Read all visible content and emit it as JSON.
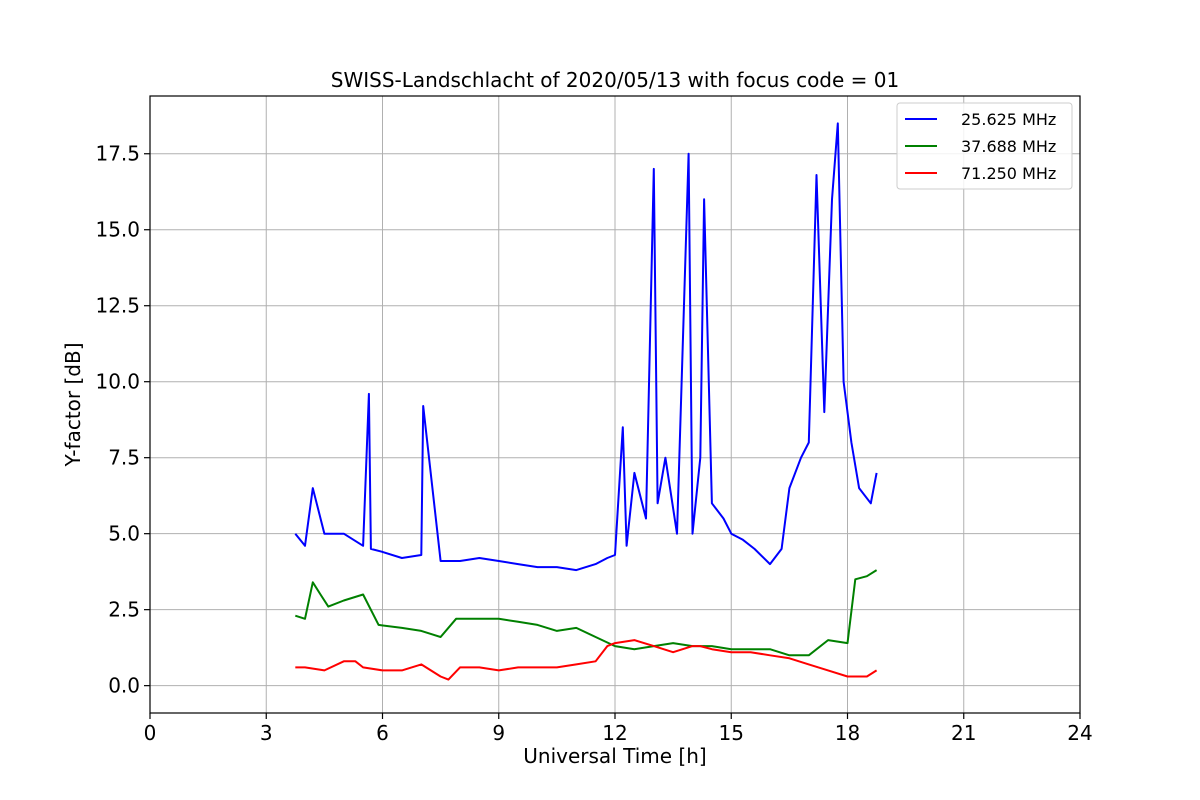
{
  "chart_data": {
    "type": "line",
    "title": "SWISS-Landschlacht of 2020/05/13 with focus code = 01",
    "xlabel": "Universal Time [h]",
    "ylabel": "Y-factor [dB]",
    "xlim": [
      0,
      24
    ],
    "ylim": [
      -0.9,
      19.4
    ],
    "xticks": [
      0,
      3,
      6,
      9,
      12,
      15,
      18,
      21,
      24
    ],
    "yticks": [
      0.0,
      2.5,
      5.0,
      7.5,
      10.0,
      12.5,
      15.0,
      17.5
    ],
    "xtick_labels": [
      "0",
      "3",
      "6",
      "9",
      "12",
      "15",
      "18",
      "21",
      "24"
    ],
    "ytick_labels": [
      "0.0",
      "2.5",
      "5.0",
      "7.5",
      "10.0",
      "12.5",
      "15.0",
      "17.5"
    ],
    "grid": true,
    "legend_position": "top-right",
    "series": [
      {
        "name": "25.625 MHz",
        "color": "#0000ff",
        "x": [
          3.75,
          4.0,
          4.2,
          4.5,
          5.0,
          5.5,
          5.65,
          5.7,
          6.0,
          6.5,
          7.0,
          7.05,
          7.5,
          8.0,
          8.5,
          9.0,
          9.5,
          10.0,
          10.5,
          11.0,
          11.5,
          11.8,
          12.0,
          12.2,
          12.3,
          12.5,
          12.8,
          13.0,
          13.1,
          13.3,
          13.6,
          13.9,
          14.0,
          14.2,
          14.3,
          14.5,
          14.8,
          15.0,
          15.3,
          15.6,
          16.0,
          16.3,
          16.5,
          16.8,
          17.0,
          17.2,
          17.4,
          17.6,
          17.75,
          17.9,
          18.1,
          18.3,
          18.6,
          18.75
        ],
        "y": [
          5.0,
          4.6,
          6.5,
          5.0,
          5.0,
          4.6,
          9.6,
          4.5,
          4.4,
          4.2,
          4.3,
          9.2,
          4.1,
          4.1,
          4.2,
          4.1,
          4.0,
          3.9,
          3.9,
          3.8,
          4.0,
          4.2,
          4.3,
          8.5,
          4.6,
          7.0,
          5.5,
          17.0,
          6.0,
          7.5,
          5.0,
          17.5,
          5.0,
          7.5,
          16.0,
          6.0,
          5.5,
          5.0,
          4.8,
          4.5,
          4.0,
          4.5,
          6.5,
          7.5,
          8.0,
          16.8,
          9.0,
          16.0,
          18.5,
          10.0,
          8.0,
          6.5,
          6.0,
          7.0
        ]
      },
      {
        "name": "37.688 MHz",
        "color": "#008000",
        "x": [
          3.75,
          4.0,
          4.2,
          4.4,
          4.6,
          5.0,
          5.5,
          5.9,
          6.5,
          7.0,
          7.5,
          7.9,
          8.5,
          9.0,
          9.5,
          10.0,
          10.5,
          11.0,
          11.5,
          12.0,
          12.5,
          13.0,
          13.5,
          14.0,
          14.5,
          15.0,
          15.5,
          16.0,
          16.5,
          17.0,
          17.5,
          18.0,
          18.2,
          18.5,
          18.75
        ],
        "y": [
          2.3,
          2.2,
          3.4,
          3.0,
          2.6,
          2.8,
          3.0,
          2.0,
          1.9,
          1.8,
          1.6,
          2.2,
          2.2,
          2.2,
          2.1,
          2.0,
          1.8,
          1.9,
          1.6,
          1.3,
          1.2,
          1.3,
          1.4,
          1.3,
          1.3,
          1.2,
          1.2,
          1.2,
          1.0,
          1.0,
          1.5,
          1.4,
          3.5,
          3.6,
          3.8
        ]
      },
      {
        "name": "71.250 MHz",
        "color": "#ff0000",
        "x": [
          3.75,
          4.0,
          4.5,
          5.0,
          5.3,
          5.5,
          6.0,
          6.5,
          7.0,
          7.5,
          7.7,
          8.0,
          8.5,
          9.0,
          9.5,
          10.0,
          10.5,
          11.0,
          11.5,
          11.8,
          12.0,
          12.5,
          13.0,
          13.5,
          14.0,
          14.2,
          14.5,
          15.0,
          15.5,
          16.0,
          16.5,
          17.0,
          17.5,
          18.0,
          18.5,
          18.75
        ],
        "y": [
          0.6,
          0.6,
          0.5,
          0.8,
          0.8,
          0.6,
          0.5,
          0.5,
          0.7,
          0.3,
          0.2,
          0.6,
          0.6,
          0.5,
          0.6,
          0.6,
          0.6,
          0.7,
          0.8,
          1.3,
          1.4,
          1.5,
          1.3,
          1.1,
          1.3,
          1.3,
          1.2,
          1.1,
          1.1,
          1.0,
          0.9,
          0.7,
          0.5,
          0.3,
          0.3,
          0.5
        ]
      }
    ]
  }
}
